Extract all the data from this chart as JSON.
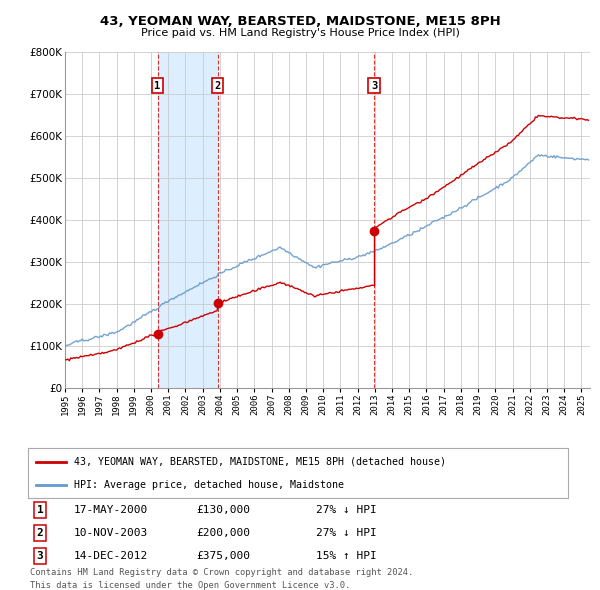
{
  "title": "43, YEOMAN WAY, BEARSTED, MAIDSTONE, ME15 8PH",
  "subtitle": "Price paid vs. HM Land Registry's House Price Index (HPI)",
  "transactions": [
    {
      "label": "1",
      "date": "17-MAY-2000",
      "price": 130000,
      "hpi_relation": "27% ↓ HPI",
      "year": 2000.38
    },
    {
      "label": "2",
      "date": "10-NOV-2003",
      "price": 200000,
      "hpi_relation": "27% ↓ HPI",
      "year": 2003.87
    },
    {
      "label": "3",
      "date": "14-DEC-2012",
      "price": 375000,
      "hpi_relation": "15% ↑ HPI",
      "year": 2012.96
    }
  ],
  "legend_line1": "43, YEOMAN WAY, BEARSTED, MAIDSTONE, ME15 8PH (detached house)",
  "legend_line2": "HPI: Average price, detached house, Maidstone",
  "footnote1": "Contains HM Land Registry data © Crown copyright and database right 2024.",
  "footnote2": "This data is licensed under the Open Government Licence v3.0.",
  "red_color": "#cc0000",
  "blue_color": "#6699cc",
  "shade_color": "#ddeeff",
  "background_color": "#ffffff",
  "grid_color": "#cccccc",
  "ylim": [
    0,
    800000
  ],
  "xlim_start": 1995.0,
  "xlim_end": 2025.5,
  "t_years": [
    2000.38,
    2003.87,
    2012.96
  ],
  "t_prices": [
    130000,
    200000,
    375000
  ]
}
